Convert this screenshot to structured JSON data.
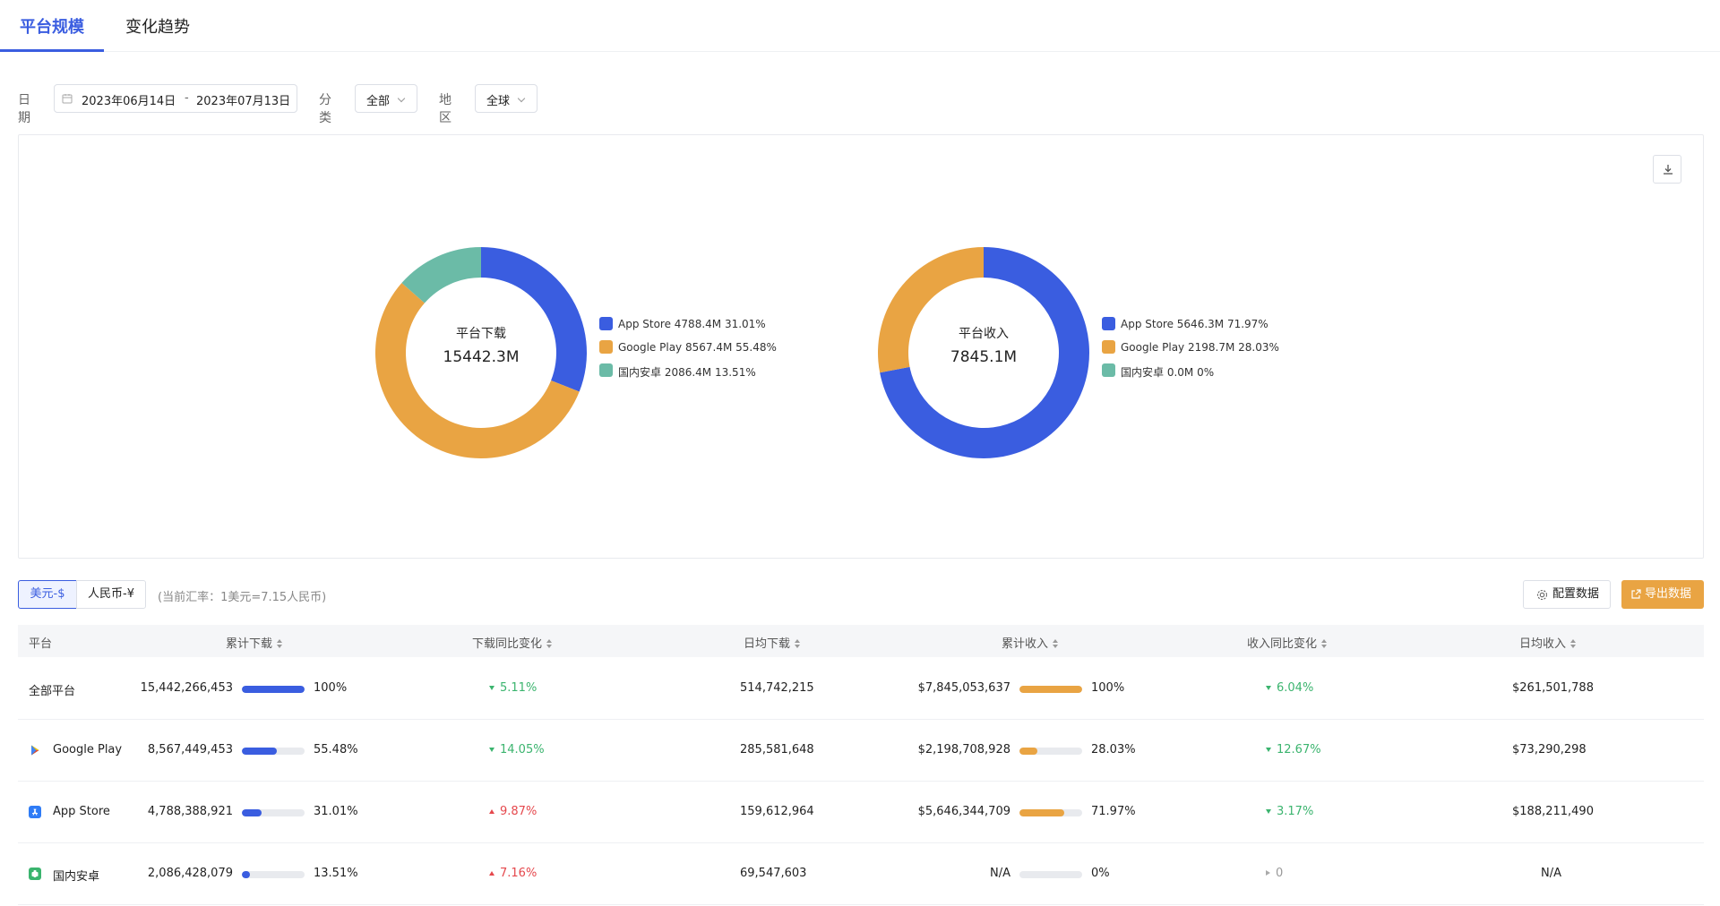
{
  "tabs": [
    {
      "label": "平台规模",
      "active": true
    },
    {
      "label": "变化趋势",
      "active": false
    }
  ],
  "filters": {
    "date_label": "日期",
    "date_start": "2023年06月14日",
    "date_sep": "-",
    "date_end": "2023年07月13日",
    "category_label": "分类",
    "category_value": "全部",
    "region_label": "地区",
    "region_value": "全球"
  },
  "colors": {
    "app_store": "#3a5de0",
    "google_play": "#e9a443",
    "domestic_android": "#6bbba7",
    "accent": "#3a5de0",
    "up": "#e5484d",
    "down": "#3bb46e"
  },
  "chart_data": [
    {
      "type": "pie",
      "title": "平台下载",
      "center_value": "15442.3M",
      "slices": [
        {
          "name": "App Store",
          "value": 4788.4,
          "percent": 31.01,
          "label": "App Store 4788.4M 31.01%",
          "color": "#3a5de0"
        },
        {
          "name": "Google Play",
          "value": 8567.4,
          "percent": 55.48,
          "label": "Google Play 8567.4M 55.48%",
          "color": "#e9a443"
        },
        {
          "name": "国内安卓",
          "value": 2086.4,
          "percent": 13.51,
          "label": "国内安卓 2086.4M 13.51%",
          "color": "#6bbba7"
        }
      ]
    },
    {
      "type": "pie",
      "title": "平台收入",
      "center_value": "7845.1M",
      "slices": [
        {
          "name": "App Store",
          "value": 5646.3,
          "percent": 71.97,
          "label": "App Store 5646.3M 71.97%",
          "color": "#3a5de0"
        },
        {
          "name": "Google Play",
          "value": 2198.7,
          "percent": 28.03,
          "label": "Google Play 2198.7M 28.03%",
          "color": "#e9a443"
        },
        {
          "name": "国内安卓",
          "value": 0.0,
          "percent": 0,
          "label": "国内安卓 0.0M 0%",
          "color": "#6bbba7"
        }
      ]
    }
  ],
  "currency": {
    "usd": "美元-$",
    "cny": "人民币-¥",
    "rate": "(当前汇率：1美元=7.15人民币)",
    "config_button": "配置数据",
    "export_button": "导出数据"
  },
  "table": {
    "headers": [
      "平台",
      "累计下载",
      "下载同比变化",
      "日均下载",
      "累计收入",
      "收入同比变化",
      "日均收入"
    ],
    "rows": [
      {
        "platform": "全部平台",
        "icon": "",
        "downloads": "15,442,266,453",
        "dl_share": 1.0,
        "dl_pct": "100%",
        "dl_change": "5.11%",
        "dl_dir": "down",
        "daily_dl": "514,742,215",
        "revenue": "$7,845,053,637",
        "rev_share": 1.0,
        "rev_pct": "100%",
        "rev_change": "6.04%",
        "rev_dir": "down",
        "daily_rev": "$261,501,788"
      },
      {
        "platform": "Google Play",
        "icon": "google-play-icon",
        "downloads": "8,567,449,453",
        "dl_share": 0.5548,
        "dl_pct": "55.48%",
        "dl_change": "14.05%",
        "dl_dir": "down",
        "daily_dl": "285,581,648",
        "revenue": "$2,198,708,928",
        "rev_share": 0.2803,
        "rev_pct": "28.03%",
        "rev_change": "12.67%",
        "rev_dir": "down",
        "daily_rev": "$73,290,298"
      },
      {
        "platform": "App Store",
        "icon": "app-store-icon",
        "downloads": "4,788,388,921",
        "dl_share": 0.3101,
        "dl_pct": "31.01%",
        "dl_change": "9.87%",
        "dl_dir": "up",
        "daily_dl": "159,612,964",
        "revenue": "$5,646,344,709",
        "rev_share": 0.7197,
        "rev_pct": "71.97%",
        "rev_change": "3.17%",
        "rev_dir": "down",
        "daily_rev": "$188,211,490"
      },
      {
        "platform": "国内安卓",
        "icon": "domestic-android-icon",
        "downloads": "2,086,428,079",
        "dl_share": 0.1351,
        "dl_pct": "13.51%",
        "dl_change": "7.16%",
        "dl_dir": "up",
        "daily_dl": "69,547,603",
        "revenue": "N/A",
        "rev_share": 0,
        "rev_pct": "0%",
        "rev_change": "0",
        "rev_dir": "flat",
        "daily_rev": "N/A"
      }
    ]
  }
}
